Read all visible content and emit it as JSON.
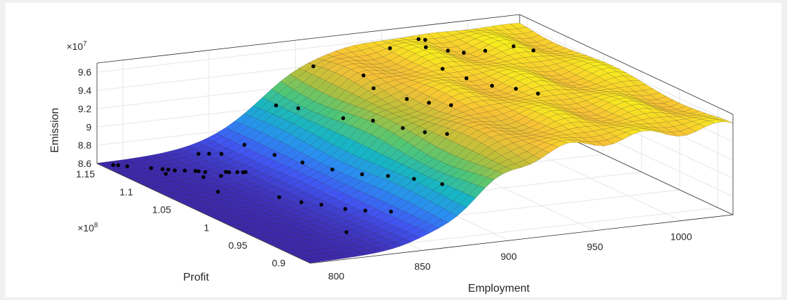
{
  "figure": {
    "background": "#f0f0f0",
    "axes_background": "#ffffff",
    "gridline_color": "#e6e6e6",
    "box_color": "#262626"
  },
  "chart_data": {
    "type": "surface",
    "xlabel": "Employment",
    "ylabel": "Profit",
    "zlabel": "Emission",
    "y_multiplier": "×10^8",
    "z_multiplier": "×10^7",
    "xlim": [
      785,
      1030
    ],
    "ylim": [
      0.88,
      1.16
    ],
    "zlim": [
      8.6,
      9.7
    ],
    "xticks": [
      800,
      850,
      900,
      950,
      1000
    ],
    "xtick_labels": [
      "800",
      "850",
      "900",
      "950",
      "1000"
    ],
    "yticks": [
      0.9,
      0.95,
      1,
      1.05,
      1.1,
      1.15
    ],
    "ytick_labels": [
      "0.9",
      "0.95",
      "1",
      "1.05",
      "1.1",
      "1.15"
    ],
    "zticks": [
      8.6,
      8.8,
      9,
      9.2,
      9.4,
      9.6
    ],
    "ztick_labels": [
      "8.6",
      "8.8",
      "9",
      "9.2",
      "9.4",
      "9.6"
    ],
    "grid": true,
    "colormap": "parula",
    "colormap_stops": [
      "#3e26a8",
      "#4155f3",
      "#2a8ff2",
      "#17b5c5",
      "#50c776",
      "#b7bf3a",
      "#f7c136",
      "#f9fb15"
    ],
    "scatter_color": "#000000",
    "scatter_points": [
      {
        "x": 790,
        "y": 1.15
      },
      {
        "x": 792,
        "y": 1.148
      },
      {
        "x": 795,
        "y": 1.143
      },
      {
        "x": 804,
        "y": 1.132
      },
      {
        "x": 808,
        "y": 1.126
      },
      {
        "x": 810,
        "y": 1.123
      },
      {
        "x": 812,
        "y": 1.119
      },
      {
        "x": 816,
        "y": 1.115
      },
      {
        "x": 820,
        "y": 1.11
      },
      {
        "x": 821,
        "y": 1.108
      },
      {
        "x": 823,
        "y": 1.104
      },
      {
        "x": 831,
        "y": 1.095
      },
      {
        "x": 832,
        "y": 1.093
      },
      {
        "x": 835,
        "y": 1.089
      },
      {
        "x": 837,
        "y": 1.086
      },
      {
        "x": 838,
        "y": 1.085
      },
      {
        "x": 805,
        "y": 1.115
      },
      {
        "x": 818,
        "y": 1.095
      },
      {
        "x": 826,
        "y": 1.09
      },
      {
        "x": 811,
        "y": 1.06
      },
      {
        "x": 831,
        "y": 1.025
      },
      {
        "x": 835,
        "y": 1.005
      },
      {
        "x": 840,
        "y": 0.99
      },
      {
        "x": 845,
        "y": 0.97
      },
      {
        "x": 850,
        "y": 0.955
      },
      {
        "x": 856,
        "y": 0.935
      },
      {
        "x": 828,
        "y": 0.93
      },
      {
        "x": 835,
        "y": 1.14
      },
      {
        "x": 839,
        "y": 1.135
      },
      {
        "x": 843,
        "y": 1.128
      },
      {
        "x": 855,
        "y": 1.125
      },
      {
        "x": 857,
        "y": 1.09
      },
      {
        "x": 860,
        "y": 1.06
      },
      {
        "x": 864,
        "y": 1.03
      },
      {
        "x": 868,
        "y": 1.0
      },
      {
        "x": 872,
        "y": 0.975
      },
      {
        "x": 876,
        "y": 0.95
      },
      {
        "x": 880,
        "y": 0.922
      },
      {
        "x": 880,
        "y": 1.14
      },
      {
        "x": 884,
        "y": 1.12
      },
      {
        "x": 888,
        "y": 1.07
      },
      {
        "x": 892,
        "y": 1.04
      },
      {
        "x": 896,
        "y": 1.01
      },
      {
        "x": 900,
        "y": 0.99
      },
      {
        "x": 904,
        "y": 0.97
      },
      {
        "x": 906,
        "y": 1.15
      },
      {
        "x": 910,
        "y": 1.08
      },
      {
        "x": 913,
        "y": 1.1
      },
      {
        "x": 916,
        "y": 1.05
      },
      {
        "x": 920,
        "y": 1.03
      },
      {
        "x": 924,
        "y": 1.01
      },
      {
        "x": 946,
        "y": 1.14
      },
      {
        "x": 950,
        "y": 1.08
      },
      {
        "x": 955,
        "y": 1.06
      },
      {
        "x": 958,
        "y": 1.12
      },
      {
        "x": 961,
        "y": 1.04
      },
      {
        "x": 966,
        "y": 1.02
      },
      {
        "x": 970,
        "y": 1.0
      },
      {
        "x": 967,
        "y": 1.15
      },
      {
        "x": 970,
        "y": 1.148
      },
      {
        "x": 973,
        "y": 1.125
      },
      {
        "x": 980,
        "y": 1.12
      },
      {
        "x": 988,
        "y": 1.11
      },
      {
        "x": 1000,
        "y": 1.1
      },
      {
        "x": 1008,
        "y": 1.092
      }
    ]
  }
}
